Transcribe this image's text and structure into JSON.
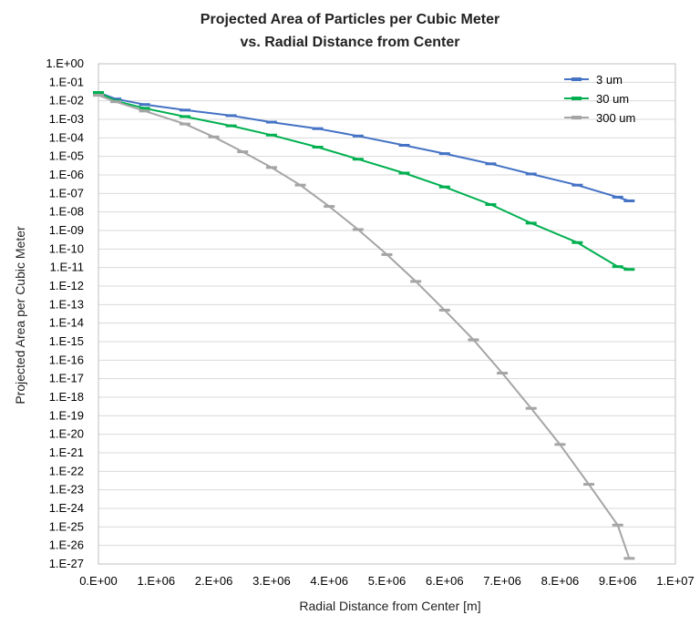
{
  "chart_data": {
    "type": "line",
    "title": [
      "Projected Area of Particles per Cubic Meter",
      "vs. Radial Distance from Center"
    ],
    "xlabel": "Radial Distance from Center [m]",
    "ylabel": "Projected Area per Cubic Meter",
    "xlim": [
      0,
      10000000
    ],
    "ylim_exponent": [
      -27,
      0
    ],
    "yscale": "log",
    "grid": "horizontal",
    "legend_position": "top-right",
    "x_tick_labels": [
      "0.E+00",
      "1.E+06",
      "2.E+06",
      "3.E+06",
      "4.E+06",
      "5.E+06",
      "6.E+06",
      "7.E+06",
      "8.E+06",
      "9.E+06",
      "1.E+07"
    ],
    "y_tick_labels": [
      "1.E+00",
      "1.E-01",
      "1.E-02",
      "1.E-03",
      "1.E-04",
      "1.E-05",
      "1.E-06",
      "1.E-07",
      "1.E-08",
      "1.E-09",
      "1.E-10",
      "1.E-11",
      "1.E-12",
      "1.E-13",
      "1.E-14",
      "1.E-15",
      "1.E-16",
      "1.E-17",
      "1.E-18",
      "1.E-19",
      "1.E-20",
      "1.E-21",
      "1.E-22",
      "1.E-23",
      "1.E-24",
      "1.E-25",
      "1.E-26",
      "1.E-27"
    ],
    "series": [
      {
        "name": "3 um",
        "color": "#4472C4",
        "marker": "dash",
        "x": [
          0,
          300000,
          800000,
          1500000,
          2300000,
          3000000,
          3800000,
          4500000,
          5300000,
          6000000,
          6800000,
          7500000,
          8300000,
          9000000,
          9200000
        ],
        "log10_y": [
          -1.55,
          -1.9,
          -2.2,
          -2.5,
          -2.8,
          -3.15,
          -3.5,
          -3.9,
          -4.4,
          -4.85,
          -5.4,
          -5.95,
          -6.55,
          -7.2,
          -7.4
        ]
      },
      {
        "name": "30 um",
        "color": "#00B050",
        "marker": "dash",
        "x": [
          0,
          300000,
          800000,
          1500000,
          2300000,
          3000000,
          3800000,
          4500000,
          5300000,
          6000000,
          6800000,
          7500000,
          8300000,
          9000000,
          9200000
        ],
        "log10_y": [
          -1.55,
          -2.0,
          -2.4,
          -2.85,
          -3.35,
          -3.85,
          -4.5,
          -5.15,
          -5.9,
          -6.65,
          -7.6,
          -8.6,
          -9.65,
          -10.95,
          -11.1
        ]
      },
      {
        "name": "300 um",
        "color": "#A5A5A5",
        "marker": "dash",
        "x": [
          0,
          300000,
          800000,
          1500000,
          2000000,
          2500000,
          3000000,
          3500000,
          4000000,
          4500000,
          5000000,
          5500000,
          6000000,
          6500000,
          7000000,
          7500000,
          8000000,
          8500000,
          9000000,
          9200000
        ],
        "log10_y": [
          -1.7,
          -2.05,
          -2.55,
          -3.25,
          -3.95,
          -4.75,
          -5.6,
          -6.55,
          -7.7,
          -8.95,
          -10.3,
          -11.75,
          -13.3,
          -14.9,
          -16.7,
          -18.6,
          -20.55,
          -22.7,
          -24.9,
          -26.7
        ]
      }
    ]
  }
}
